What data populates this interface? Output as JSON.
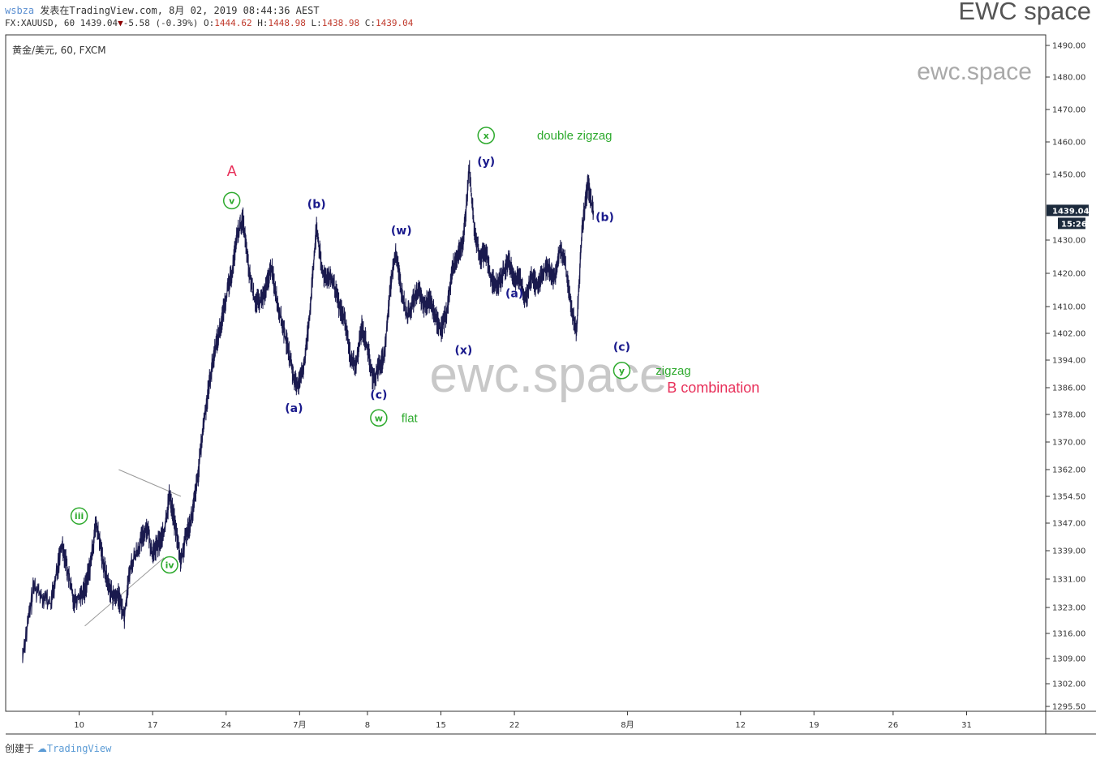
{
  "header": {
    "user": "wsbza",
    "published": "发表在TradingView.com, 8月 02, 2019 08:44:36 AEST",
    "brand": "EWC space"
  },
  "ohlc": {
    "symbol": "FX:XAUUSD, 60",
    "last": "1439.04",
    "change": "-5.58 (-0.39%)",
    "open_label": "O:",
    "open": "1444.62",
    "high_label": "H:",
    "high": "1448.98",
    "low_label": "L:",
    "low": "1438.98",
    "close_label": "C:",
    "close": "1439.04"
  },
  "footer": {
    "created_by": "创建于",
    "logo_text": "TradingView"
  },
  "colors": {
    "candles": "#1a1a4e",
    "green_label": "#2eaa2e",
    "blue_label": "#1a1a8c",
    "red_label": "#e8305a",
    "price_tag": "#1c2a3c",
    "watermark": "#c8c8c8",
    "trendline": "#999999"
  },
  "chart_data": {
    "type": "line",
    "title": "黄金/美元, 60, FXCM",
    "watermark_large": "ewc.space",
    "watermark_small": "ewc.space",
    "x_tick_labels": [
      "10",
      "17",
      "24",
      "7月",
      "8",
      "15",
      "22",
      "8月",
      "12",
      "19",
      "26",
      "31"
    ],
    "y_tick_labels": [
      "1490.00",
      "1480.00",
      "1470.00",
      "1460.00",
      "1450.00",
      "1439.04",
      "1430.00",
      "1420.00",
      "1410.00",
      "1402.00",
      "1394.00",
      "1386.00",
      "1378.00",
      "1370.00",
      "1362.00",
      "1354.50",
      "1347.00",
      "1339.00",
      "1331.00",
      "1323.00",
      "1316.00",
      "1309.00",
      "1302.00",
      "1295.50"
    ],
    "last_price_tag": "1439.04",
    "countdown_tag": "15:26",
    "series": [
      {
        "values": [
          [
            3,
            1310
          ],
          [
            5,
            1329
          ],
          [
            8,
            1324
          ],
          [
            10,
            1341
          ],
          [
            11,
            1333
          ],
          [
            12,
            1325
          ],
          [
            14,
            1328
          ],
          [
            15,
            1335
          ],
          [
            16,
            1347
          ],
          [
            17,
            1338
          ],
          [
            18,
            1330
          ],
          [
            19,
            1326
          ],
          [
            20,
            1326
          ],
          [
            21,
            1321
          ],
          [
            22,
            1334
          ],
          [
            24,
            1342
          ],
          [
            25,
            1346
          ],
          [
            26,
            1338
          ],
          [
            27,
            1341
          ],
          [
            28,
            1344
          ],
          [
            29,
            1355
          ],
          [
            30,
            1346
          ],
          [
            31,
            1336
          ],
          [
            32,
            1344
          ],
          [
            33,
            1349
          ],
          [
            34,
            1360
          ],
          [
            35,
            1375
          ],
          [
            36,
            1387
          ],
          [
            37,
            1397
          ],
          [
            38,
            1404
          ],
          [
            39,
            1413
          ],
          [
            40,
            1420
          ],
          [
            41,
            1432
          ],
          [
            42,
            1436
          ],
          [
            43,
            1421
          ],
          [
            44,
            1412
          ],
          [
            45,
            1411
          ],
          [
            46,
            1415
          ],
          [
            47,
            1422
          ],
          [
            48,
            1412
          ],
          [
            49,
            1404
          ],
          [
            50,
            1397
          ],
          [
            51,
            1388
          ],
          [
            52,
            1387
          ],
          [
            53,
            1395
          ],
          [
            54,
            1412
          ],
          [
            55,
            1434
          ],
          [
            56,
            1420
          ],
          [
            57,
            1419
          ],
          [
            58,
            1417
          ],
          [
            59,
            1410
          ],
          [
            60,
            1406
          ],
          [
            61,
            1395
          ],
          [
            62,
            1392
          ],
          [
            63,
            1404
          ],
          [
            64,
            1398
          ],
          [
            65,
            1388
          ],
          [
            66,
            1392
          ],
          [
            67,
            1395
          ],
          [
            68,
            1415
          ],
          [
            69,
            1427
          ],
          [
            70,
            1415
          ],
          [
            71,
            1407
          ],
          [
            72,
            1411
          ],
          [
            73,
            1415
          ],
          [
            74,
            1410
          ],
          [
            75,
            1412
          ],
          [
            76,
            1407
          ],
          [
            77,
            1403
          ],
          [
            78,
            1408
          ],
          [
            79,
            1421
          ],
          [
            80,
            1426
          ],
          [
            81,
            1430
          ],
          [
            82,
            1452
          ],
          [
            83,
            1432
          ],
          [
            84,
            1425
          ],
          [
            85,
            1426
          ],
          [
            86,
            1418
          ],
          [
            87,
            1416
          ],
          [
            88,
            1420
          ],
          [
            89,
            1424
          ],
          [
            90,
            1418
          ],
          [
            91,
            1419
          ],
          [
            92,
            1412
          ],
          [
            93,
            1419
          ],
          [
            94,
            1416
          ],
          [
            95,
            1420
          ],
          [
            96,
            1422
          ],
          [
            97,
            1418
          ],
          [
            98,
            1427
          ],
          [
            99,
            1423
          ],
          [
            100,
            1410
          ],
          [
            101,
            1403
          ],
          [
            102,
            1434
          ],
          [
            103,
            1447
          ],
          [
            104,
            1439
          ]
        ]
      }
    ],
    "annotations": [
      {
        "text": "iii",
        "style": "circle-green",
        "x": 13,
        "y": 1349
      },
      {
        "text": "iv",
        "style": "circle-green",
        "x": 29,
        "y": 1335
      },
      {
        "text": "v",
        "style": "circle-green",
        "x": 40,
        "y": 1442
      },
      {
        "text": "A",
        "style": "red",
        "x": 40,
        "y": 1451
      },
      {
        "text": "(a)",
        "style": "blue",
        "x": 51,
        "y": 1380
      },
      {
        "text": "(b)",
        "style": "blue",
        "x": 55,
        "y": 1441
      },
      {
        "text": "(c)",
        "style": "blue",
        "x": 66,
        "y": 1384
      },
      {
        "text": "w",
        "style": "circle-green",
        "x": 66,
        "y": 1377
      },
      {
        "text": "flat",
        "style": "green",
        "x": 70,
        "y": 1377
      },
      {
        "text": "(w)",
        "style": "blue",
        "x": 70,
        "y": 1433
      },
      {
        "text": "(x)",
        "style": "blue",
        "x": 81,
        "y": 1397
      },
      {
        "text": "(y)",
        "style": "blue",
        "x": 85,
        "y": 1454
      },
      {
        "text": "x",
        "style": "circle-green",
        "x": 85,
        "y": 1462
      },
      {
        "text": "double zigzag",
        "style": "green",
        "x": 94,
        "y": 1462
      },
      {
        "text": "(a)",
        "style": "blue",
        "x": 90,
        "y": 1414
      },
      {
        "text": "(b)",
        "style": "blue",
        "x": 106,
        "y": 1437
      },
      {
        "text": "(c)",
        "style": "blue",
        "x": 109,
        "y": 1398
      },
      {
        "text": "y",
        "style": "circle-green",
        "x": 109,
        "y": 1391
      },
      {
        "text": "zigzag",
        "style": "green",
        "x": 115,
        "y": 1391
      },
      {
        "text": "B combination",
        "style": "red",
        "x": 117,
        "y": 1386
      }
    ]
  }
}
